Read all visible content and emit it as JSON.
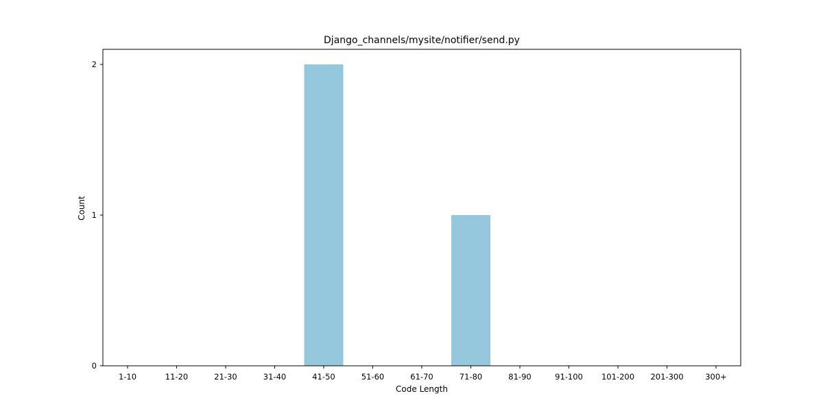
{
  "chart_data": {
    "type": "bar",
    "title": "Django_channels/mysite/notifier/send.py",
    "xlabel": "Code Length",
    "ylabel": "Count",
    "categories": [
      "1-10",
      "11-20",
      "21-30",
      "31-40",
      "41-50",
      "51-60",
      "61-70",
      "71-80",
      "81-90",
      "91-100",
      "101-200",
      "201-300",
      "300+"
    ],
    "values": [
      0,
      0,
      0,
      0,
      2,
      0,
      0,
      1,
      0,
      0,
      0,
      0,
      0
    ],
    "ylim": [
      0,
      2.1
    ],
    "yticks": [
      0,
      1,
      2
    ],
    "grid": false,
    "bar_color": "#95c8dc"
  }
}
